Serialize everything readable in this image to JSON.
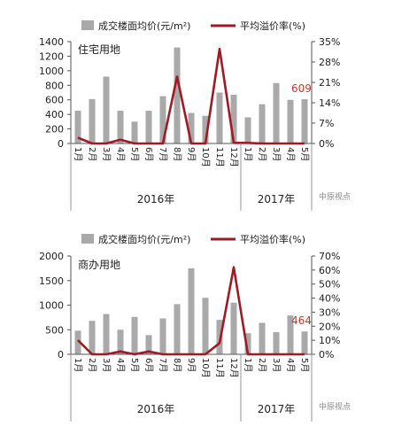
{
  "colors": {
    "bar": "#a9a9a9",
    "line": "#9e1b25",
    "annotation": "#c0392b",
    "axis": "#555555",
    "text": "#222222"
  },
  "watermark": "中原视点",
  "chart_data": [
    {
      "type": "bar",
      "title": "住宅用地",
      "legend": {
        "bar_label": "成交楼面均价(元/m²)",
        "line_label": "平均溢价率(%)"
      },
      "categories": [
        "1月",
        "2月",
        "3月",
        "4月",
        "5月",
        "6月",
        "7月",
        "8月",
        "9月",
        "10月",
        "11月",
        "12月",
        "1月",
        "2月",
        "3月",
        "4月",
        "5月"
      ],
      "year_labels": [
        "2016年",
        "2017年"
      ],
      "series": [
        {
          "name": "成交楼面均价(元/m²)",
          "axis": "left",
          "values": [
            450,
            610,
            920,
            450,
            300,
            450,
            650,
            1320,
            420,
            380,
            700,
            670,
            360,
            540,
            830,
            600,
            609
          ]
        },
        {
          "name": "平均溢价率(%)",
          "axis": "right",
          "type": "line",
          "values": [
            2,
            0,
            0,
            1.3,
            0,
            0,
            0,
            23,
            0,
            0,
            32.5,
            0.2,
            0.2,
            0,
            0,
            0,
            0
          ]
        }
      ],
      "y_left": {
        "min": 0,
        "max": 1400,
        "ticks": [
          "0",
          "200",
          "400",
          "600",
          "800",
          "1000",
          "1200",
          "1400"
        ]
      },
      "y_right": {
        "min": 0,
        "max": 35,
        "ticks": [
          "0%",
          "7%",
          "14%",
          "21%",
          "28%",
          "35%"
        ]
      },
      "annotation": "609"
    },
    {
      "type": "bar",
      "title": "商办用地",
      "legend": {
        "bar_label": "成交楼面均价(元/m²)",
        "line_label": "平均溢价率(%)"
      },
      "categories": [
        "1月",
        "2月",
        "3月",
        "4月",
        "5月",
        "6月",
        "7月",
        "8月",
        "9月",
        "10月",
        "11月",
        "12月",
        "1月",
        "2月",
        "3月",
        "4月",
        "5月"
      ],
      "year_labels": [
        "2016年",
        "2017年"
      ],
      "series": [
        {
          "name": "成交楼面均价(元/m²)",
          "axis": "left",
          "values": [
            480,
            680,
            820,
            500,
            760,
            390,
            730,
            1020,
            1750,
            1150,
            700,
            1050,
            430,
            640,
            450,
            790,
            464
          ]
        },
        {
          "name": "平均溢价率(%)",
          "axis": "right",
          "type": "line",
          "values": [
            10,
            0,
            0,
            2,
            0,
            2,
            0,
            0,
            0,
            0,
            8,
            62,
            0,
            0,
            0,
            0,
            0
          ]
        }
      ],
      "y_left": {
        "min": 0,
        "max": 2000,
        "ticks": [
          "0",
          "500",
          "1000",
          "1500",
          "2000"
        ]
      },
      "y_right": {
        "min": 0,
        "max": 70,
        "ticks": [
          "0%",
          "10%",
          "20%",
          "30%",
          "40%",
          "50%",
          "60%",
          "70%"
        ]
      },
      "annotation": "464"
    }
  ]
}
